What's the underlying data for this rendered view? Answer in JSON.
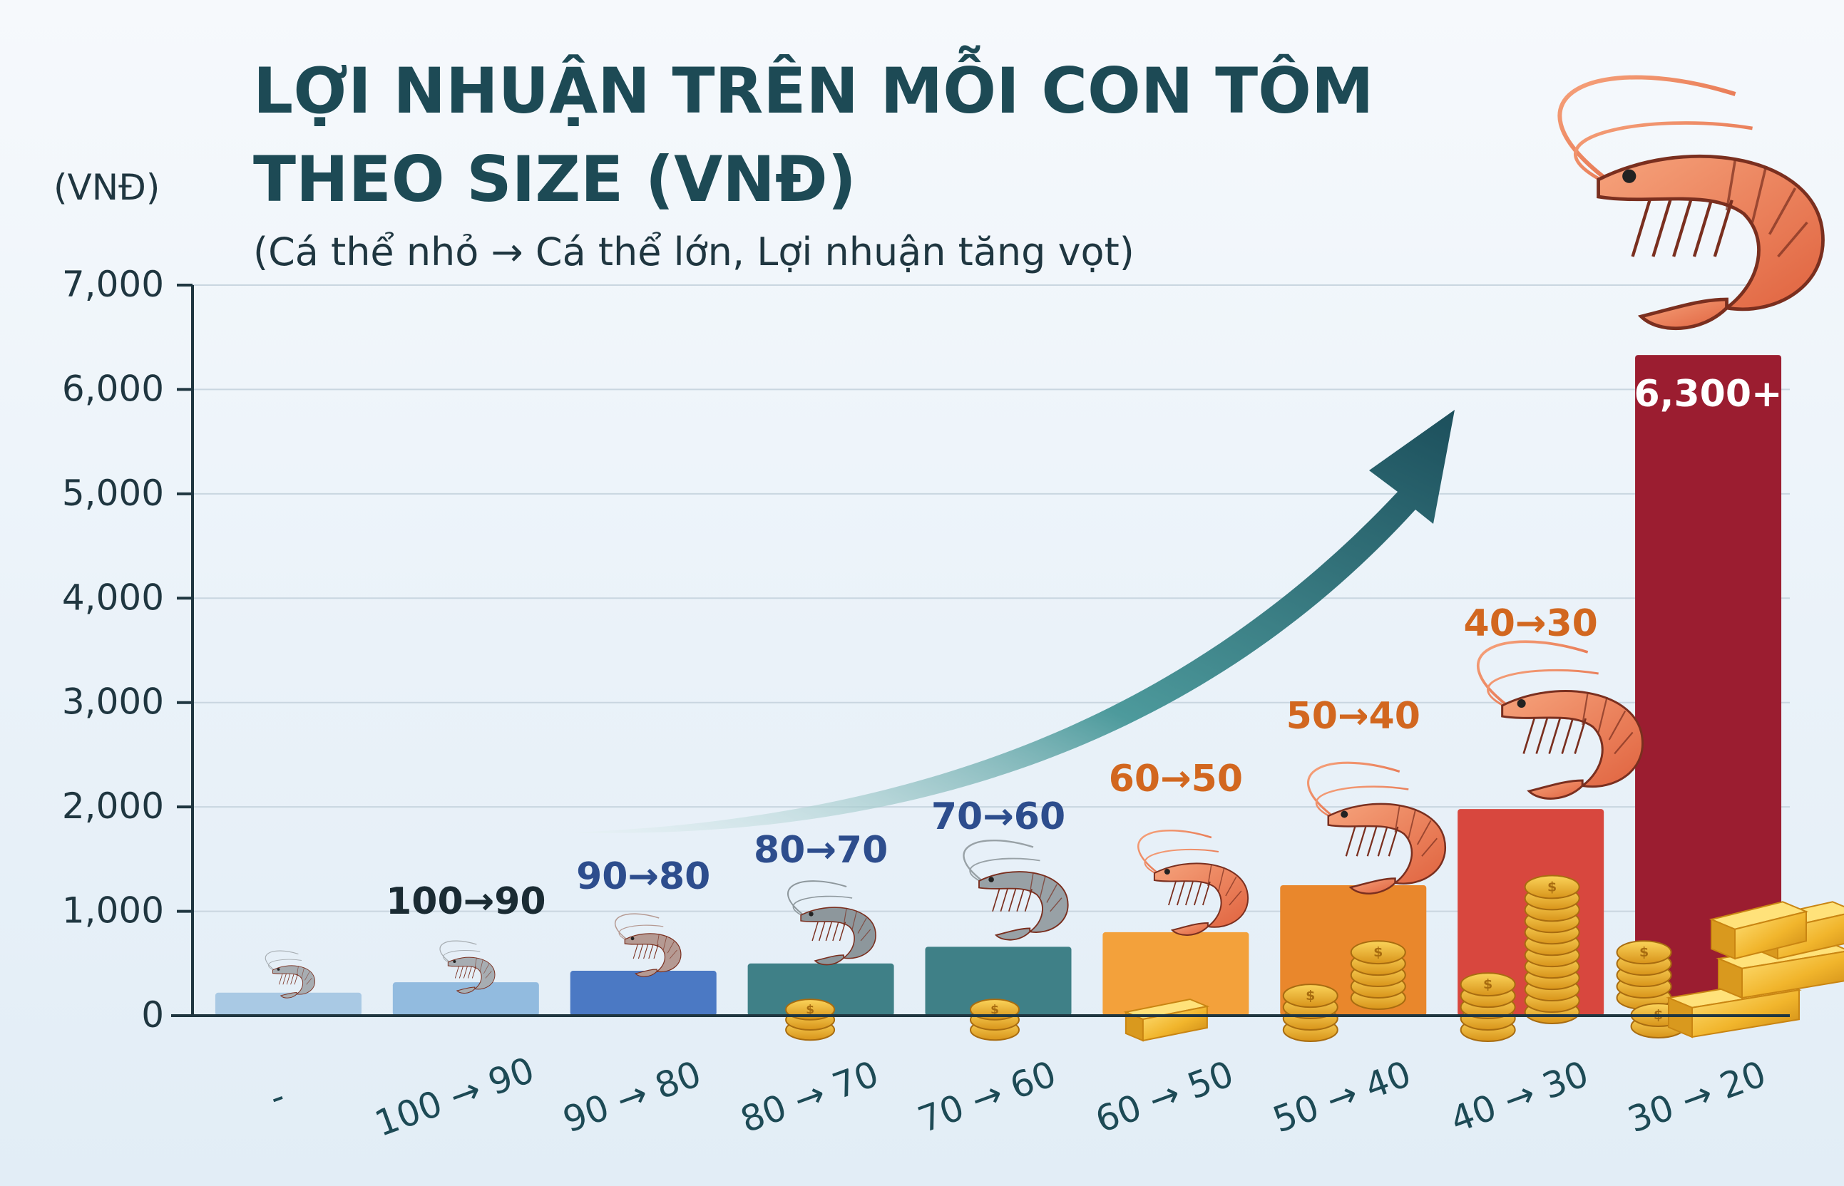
{
  "chart_data": {
    "type": "bar",
    "title_line1": "LỢI NHUẬN TRÊN MỖI CON TÔM",
    "title_line2": "THEO SIZE (VNĐ)",
    "subtitle": "(Cá thể nhỏ → Cá thể lớn, Lợi nhuận tăng vọt)",
    "ylabel": "(VNĐ)",
    "xlabel": "",
    "ylim": [
      0,
      7000
    ],
    "yticks": [
      "0",
      "1,000",
      "2,000",
      "3,000",
      "4,000",
      "5,000",
      "6,000",
      "7,000"
    ],
    "grid": true,
    "legend": "none",
    "categories": [
      "-",
      "100 → 90",
      "90 → 80",
      "80 → 70",
      "70 → 60",
      "60 → 50",
      "50 → 40",
      "40 → 30",
      "30 → 20"
    ],
    "values": [
      220,
      320,
      430,
      500,
      660,
      800,
      1250,
      1980,
      6330
    ],
    "bar_labels": [
      "",
      "100→90",
      "90→80",
      "80→70",
      "70→60",
      "60→50",
      "50→40",
      "40→30",
      "6,300+"
    ],
    "bar_colors": [
      "#a9c9e4",
      "#92bbdf",
      "#4b79c4",
      "#3f8087",
      "#3f8087",
      "#f3a13b",
      "#e9872c",
      "#d8473e",
      "#9b1d30"
    ],
    "label_colors": [
      "#1a2b33",
      "#1a2b33",
      "#2d4d8d",
      "#2d4d8d",
      "#2d4d8d",
      "#d2671f",
      "#d2671f",
      "#d2671f",
      "#ffffff"
    ],
    "annotations": [
      "trend-arrow",
      "shrimp-illustrations",
      "gold-coins",
      "gold-bars"
    ]
  }
}
